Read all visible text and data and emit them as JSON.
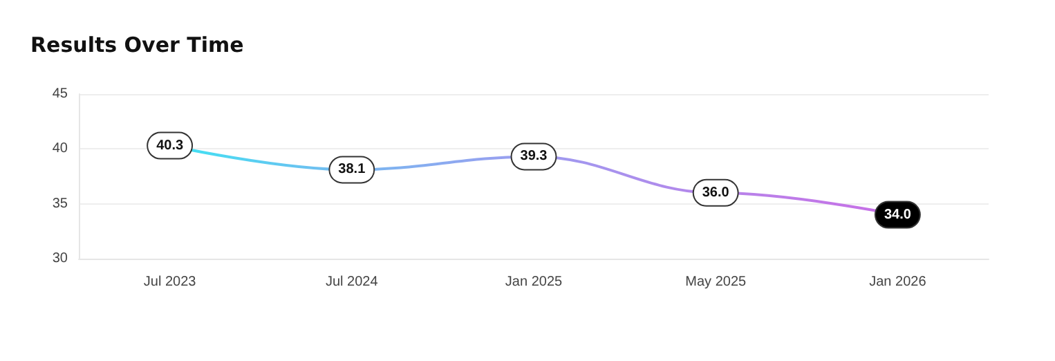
{
  "chart_data": {
    "type": "line",
    "title": "Results Over Time",
    "categories": [
      "Jul 2023",
      "Jul 2024",
      "Jan 2025",
      "May 2025",
      "Jan 2026"
    ],
    "series": [
      {
        "colors": [
          "#3ee3f3",
          "#78b8f0",
          "#9d9cf0",
          "#b685ea",
          "#c86ee6"
        ],
        "values": [
          40.3,
          38.1,
          39.3,
          36.0,
          34.0
        ],
        "value_labels": [
          "40.3",
          "38.1",
          "39.3",
          "36.0",
          "34.0"
        ]
      }
    ],
    "ylim": [
      30,
      45
    ],
    "yticks": [
      30,
      35,
      40,
      45
    ],
    "grid": "y",
    "marker": "none",
    "line_style": "solid"
  }
}
